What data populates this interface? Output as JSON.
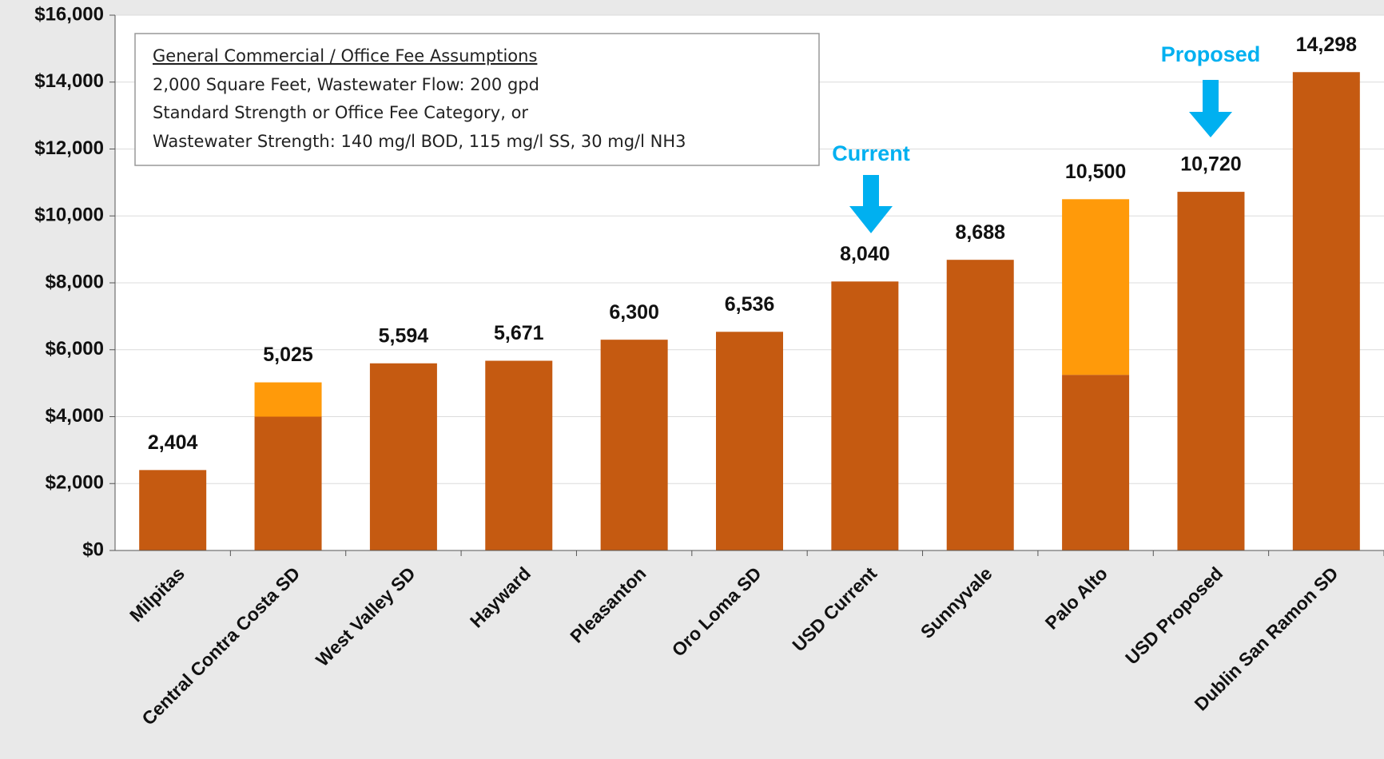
{
  "chart_data": {
    "type": "bar",
    "stacked": true,
    "categories": [
      "Milpitas",
      "Central Contra Costa SD",
      "West Valley SD",
      "Hayward",
      "Pleasanton",
      "Oro Loma SD",
      "USD Current",
      "Sunnyvale",
      "Palo Alto",
      "USD Proposed",
      "Dublin San Ramon SD"
    ],
    "series": [
      {
        "color": "#c55a11",
        "values": [
          2404,
          4000,
          5594,
          5671,
          6300,
          6536,
          8040,
          8688,
          5250,
          10720,
          14298
        ]
      },
      {
        "color": "#ff9a0a",
        "values": [
          null,
          1025,
          null,
          null,
          null,
          null,
          null,
          null,
          5250,
          null,
          null
        ]
      }
    ],
    "total_labels": [
      "2,404",
      "5,025",
      "5,594",
      "5,671",
      "6,300",
      "6,536",
      "8,040",
      "8,688",
      "10,500",
      "10,720",
      "14,298"
    ],
    "ylim": [
      0,
      16000
    ],
    "yticks": [
      {
        "value": 0,
        "label": "$0"
      },
      {
        "value": 2000,
        "label": "$2,000"
      },
      {
        "value": 4000,
        "label": "$4,000"
      },
      {
        "value": 6000,
        "label": "$6,000"
      },
      {
        "value": 8000,
        "label": "$8,000"
      },
      {
        "value": 10000,
        "label": "$10,000"
      },
      {
        "value": 12000,
        "label": "$12,000"
      },
      {
        "value": 14000,
        "label": "$14,000"
      },
      {
        "value": 16000,
        "label": "$16,000"
      }
    ],
    "grid": true,
    "annotations": {
      "assumptions": [
        "General Commercial / Office Fee Assumptions",
        "2,000 Square Feet, Wastewater Flow: 200 gpd",
        "Standard Strength or Office Fee Category, or",
        "Wastewater Strength: 140 mg/l BOD, 115 mg/l SS, 30 mg/l NH3"
      ],
      "current": "Current",
      "proposed": "Proposed"
    }
  }
}
